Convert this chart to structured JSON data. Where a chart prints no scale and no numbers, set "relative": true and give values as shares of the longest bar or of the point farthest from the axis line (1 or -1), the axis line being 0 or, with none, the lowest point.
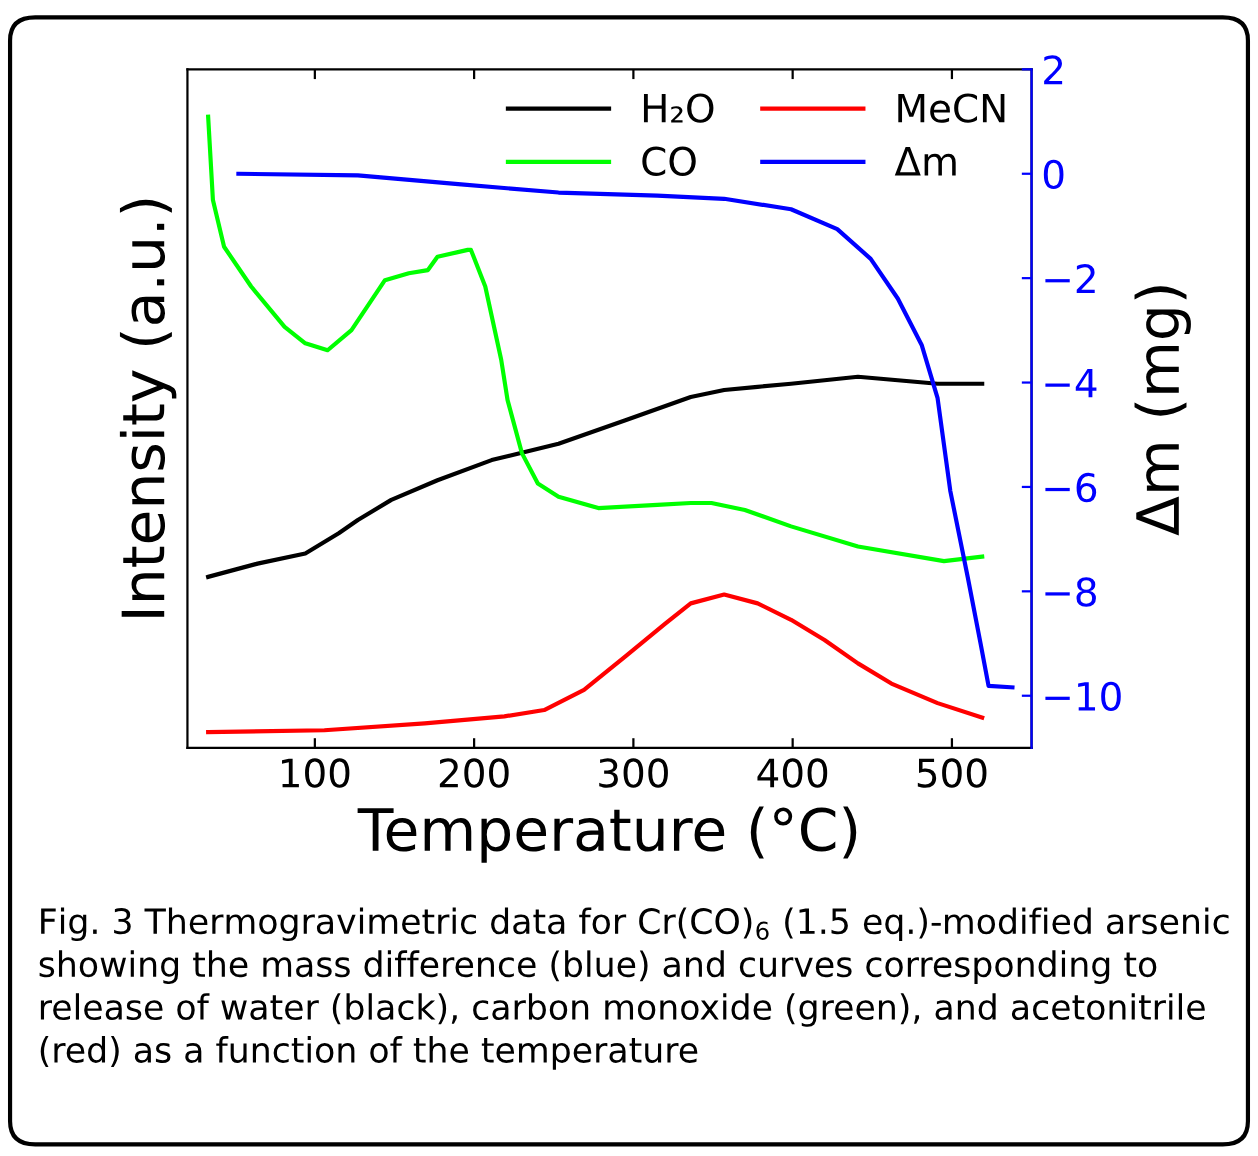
{
  "chart_data": [
    {
      "type": "line",
      "relative": true,
      "xlabel": "Temperature (°C)",
      "ylabel": "Intensity (a.u.)",
      "xlim": [
        20,
        550
      ],
      "xticks": [
        100,
        200,
        300,
        400,
        500
      ],
      "legend": "top right",
      "line_style": "solid",
      "annotations": [
        "Fig. 3 Thermogravimetric data for Cr(CO)$_{6}$ (1.5 eq.)-modified arsenic showing the mass difference (blue) and curves corresponding to release of water (black), carbon monoxide (green), and acetonitrile (red) as a function of the temperature"
      ],
      "series": [
        {
          "name": "H₂O",
          "color": "#000000",
          "x": [
            33,
            64,
            94,
            115,
            127,
            148,
            177,
            211,
            253,
            295,
            336,
            357,
            378,
            399,
            441,
            491,
            519
          ],
          "values": [
            0.271,
            0.292,
            0.308,
            0.34,
            0.361,
            0.393,
            0.424,
            0.456,
            0.482,
            0.519,
            0.556,
            0.567,
            0.572,
            0.577,
            0.588,
            0.577,
            0.577
          ]
        },
        {
          "name": "CO",
          "color": "#00ff00",
          "x": [
            33,
            36,
            43,
            60,
            81,
            94,
            108,
            123,
            144,
            159,
            171,
            177,
            196,
            198,
            207,
            217,
            221,
            230,
            240,
            253,
            278,
            315,
            336,
            349,
            370,
            399,
            441,
            495,
            519
          ],
          "values": [
            1.0,
            0.868,
            0.794,
            0.731,
            0.667,
            0.641,
            0.63,
            0.662,
            0.741,
            0.752,
            0.757,
            0.778,
            0.789,
            0.789,
            0.731,
            0.615,
            0.551,
            0.467,
            0.419,
            0.398,
            0.38,
            0.385,
            0.388,
            0.388,
            0.377,
            0.351,
            0.319,
            0.296,
            0.303
          ]
        },
        {
          "name": "MeCN",
          "color": "#ff0000",
          "x": [
            33,
            106,
            169,
            219,
            244,
            269,
            295,
            320,
            336,
            357,
            378,
            399,
            420,
            441,
            462,
            491,
            519
          ],
          "values": [
            0.025,
            0.028,
            0.039,
            0.05,
            0.06,
            0.092,
            0.145,
            0.197,
            0.229,
            0.243,
            0.229,
            0.203,
            0.171,
            0.134,
            0.102,
            0.071,
            0.048
          ]
        }
      ]
    },
    {
      "type": "line",
      "y2label": "Δm (mg)",
      "xlim": [
        20,
        550
      ],
      "tick_labels": "y",
      "y2lim": [
        -11,
        2
      ],
      "y2ticks": [
        -10,
        -8,
        -6,
        -4,
        -2,
        0,
        2
      ],
      "legend": "top right",
      "line_style": "solid",
      "series": [
        {
          "name": "Δm",
          "color": "#0000ff",
          "axis": "y2",
          "x": [
            52,
            127,
            190,
            253,
            315,
            357,
            399,
            428,
            449,
            466,
            481,
            491,
            499,
            510,
            518,
            523,
            538
          ],
          "values": [
            0,
            -0.03,
            -0.2,
            -0.36,
            -0.42,
            -0.48,
            -0.68,
            -1.06,
            -1.63,
            -2.39,
            -3.28,
            -4.3,
            -6.08,
            -7.74,
            -9.0,
            -9.81,
            -9.84
          ]
        }
      ]
    }
  ]
}
